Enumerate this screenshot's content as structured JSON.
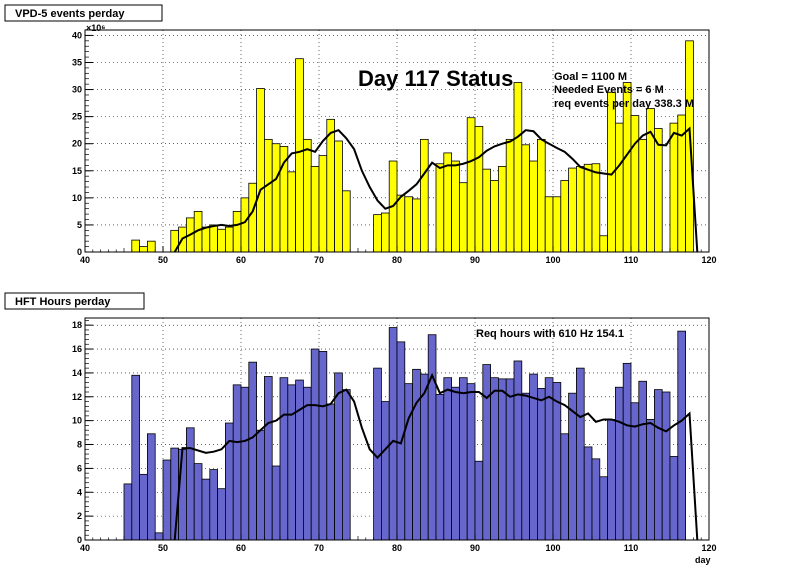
{
  "chart_data": [
    {
      "type": "bar",
      "title": "VPD-5 events perday",
      "overlay_title": "Day 117 Status",
      "annotations": [
        "Goal =  1100 M",
        "Needed Events =     6 M",
        "req events per day 338.3 M"
      ],
      "exponent_label": "×10⁶",
      "xlabel": "",
      "ylabel": "",
      "xlim": [
        40,
        120
      ],
      "ylim": [
        0,
        41
      ],
      "x_ticks": [
        40,
        50,
        60,
        70,
        80,
        90,
        100,
        110,
        120
      ],
      "y_ticks": [
        0,
        5,
        10,
        15,
        20,
        25,
        30,
        35,
        40
      ],
      "grid": true,
      "bin_width": 1,
      "bar_color": "#ffff00",
      "line_color": "#000000",
      "series": [
        {
          "style": "histogram",
          "x": [
            46,
            47,
            48,
            49,
            50,
            51,
            52,
            53,
            54,
            55,
            56,
            57,
            58,
            59,
            60,
            61,
            62,
            63,
            64,
            65,
            66,
            67,
            68,
            69,
            70,
            71,
            72,
            73,
            77,
            78,
            79,
            80,
            81,
            82,
            83,
            85,
            86,
            87,
            88,
            89,
            90,
            91,
            92,
            93,
            94,
            95,
            96,
            97,
            98,
            99,
            100,
            101,
            102,
            103,
            104,
            105,
            106,
            107,
            108,
            109,
            110,
            111,
            112,
            113,
            115,
            116,
            117
          ],
          "values": [
            2.2,
            1,
            2,
            0,
            0,
            4,
            4.6,
            6.3,
            7.5,
            4.6,
            5,
            4.2,
            4.6,
            7.5,
            10,
            12.7,
            30.2,
            20.8,
            20,
            19.5,
            14.8,
            35.7,
            20.8,
            15.8,
            17.8,
            24.5,
            20.5,
            11.3,
            6.9,
            7.2,
            16.8,
            10.5,
            10.2,
            9.8,
            20.8,
            16.3,
            18.3,
            16.8,
            12.8,
            24.8,
            23.2,
            15.3,
            13.2,
            15.8,
            20.8,
            31.3,
            19.8,
            16.8,
            20.8,
            10.2,
            10.2,
            13.2,
            15.5,
            15.8,
            16.2,
            16.3,
            3,
            29.5,
            23.8,
            31.3,
            25.2,
            20.8,
            26.5,
            22.8,
            23.8,
            25.3,
            39
          ]
        },
        {
          "style": "line",
          "x": [
            51,
            52,
            53,
            54,
            55,
            56,
            57,
            58,
            59,
            60,
            61,
            62,
            63,
            64,
            65,
            66,
            67,
            68,
            69,
            70,
            71,
            72,
            73,
            74,
            75,
            76,
            77,
            78,
            79,
            80,
            81,
            82,
            83,
            84,
            85,
            86,
            87,
            88,
            89,
            90,
            91,
            92,
            93,
            94,
            95,
            96,
            97,
            98,
            99,
            100,
            101,
            102,
            103,
            104,
            105,
            106,
            107,
            108,
            109,
            110,
            111,
            112,
            113,
            114,
            115,
            116,
            117,
            118
          ],
          "values": [
            0,
            2.5,
            3.2,
            4,
            4.5,
            4.8,
            5,
            4.8,
            5,
            5.5,
            7.5,
            11.5,
            12.5,
            13.5,
            16.5,
            18.2,
            18.5,
            19,
            18.5,
            20.5,
            22,
            22.5,
            21,
            19,
            15,
            12,
            9.5,
            8,
            8.5,
            10.2,
            11.3,
            12.5,
            14.5,
            16.5,
            15.5,
            16,
            16,
            16.3,
            16.8,
            17.5,
            18.7,
            19.5,
            20,
            20.4,
            21.3,
            22.5,
            22.3,
            20.8,
            20,
            19.2,
            18.5,
            17.2,
            15.7,
            15.2,
            14.7,
            14.5,
            14.3,
            16,
            18,
            20,
            21.5,
            22.2,
            19.8,
            19.7,
            22,
            21.5,
            22.8,
            0
          ]
        }
      ]
    },
    {
      "type": "bar",
      "title": "HFT Hours perday",
      "annotations": [
        "Req hours with  610 Hz 154.1"
      ],
      "xlabel": "day",
      "ylabel": "",
      "xlim": [
        40,
        120
      ],
      "ylim": [
        0,
        18.6
      ],
      "x_ticks": [
        40,
        50,
        60,
        70,
        80,
        90,
        100,
        110,
        120
      ],
      "y_ticks": [
        0,
        2,
        4,
        6,
        8,
        10,
        12,
        14,
        16,
        18
      ],
      "grid": true,
      "bin_width": 1,
      "bar_color": "#6666cc",
      "line_color": "#000000",
      "series": [
        {
          "style": "histogram",
          "x": [
            45,
            46,
            47,
            48,
            49,
            50,
            51,
            52,
            53,
            54,
            55,
            56,
            57,
            58,
            59,
            60,
            61,
            62,
            63,
            64,
            65,
            66,
            67,
            68,
            69,
            70,
            71,
            72,
            73,
            77,
            78,
            79,
            80,
            81,
            82,
            83,
            84,
            85,
            86,
            87,
            88,
            89,
            90,
            91,
            92,
            93,
            94,
            95,
            96,
            97,
            98,
            99,
            100,
            101,
            102,
            103,
            104,
            105,
            106,
            107,
            108,
            109,
            110,
            111,
            112,
            113,
            114,
            115,
            116,
            117
          ],
          "values": [
            4.7,
            13.8,
            5.5,
            8.9,
            0.6,
            6.7,
            7.7,
            7.6,
            9.4,
            6.4,
            5.1,
            5.9,
            4.3,
            9.8,
            13,
            12.8,
            14.9,
            9.2,
            13.7,
            6.2,
            13.6,
            13,
            13.4,
            12.8,
            16,
            15.8,
            11.4,
            14,
            12.6,
            14.4,
            11.6,
            17.8,
            16.6,
            13.1,
            14.3,
            13.9,
            17.2,
            12.2,
            13.6,
            12.8,
            13.6,
            13.1,
            6.6,
            14.7,
            13.6,
            13.5,
            13.5,
            15,
            12.3,
            13.9,
            12.7,
            13.6,
            13.2,
            8.9,
            12.3,
            14.4,
            7.8,
            6.8,
            5.3,
            10.1,
            12.8,
            14.8,
            11.5,
            13.3,
            10.1,
            12.6,
            12.4,
            7,
            17.5,
            0
          ]
        },
        {
          "style": "line",
          "x": [
            51,
            52,
            53,
            54,
            55,
            56,
            57,
            58,
            59,
            60,
            61,
            62,
            63,
            64,
            65,
            66,
            67,
            68,
            69,
            70,
            71,
            72,
            73,
            74,
            75,
            76,
            77,
            78,
            79,
            80,
            81,
            82,
            83,
            84,
            85,
            86,
            87,
            88,
            89,
            90,
            91,
            92,
            93,
            94,
            95,
            96,
            97,
            98,
            99,
            100,
            101,
            102,
            103,
            104,
            105,
            106,
            107,
            108,
            109,
            110,
            111,
            112,
            113,
            114,
            115,
            116,
            117,
            118
          ],
          "values": [
            0,
            7.7,
            7.7,
            7.5,
            7.3,
            7.4,
            7.6,
            8.3,
            8.2,
            8.3,
            8.6,
            9.2,
            9.8,
            10,
            10.5,
            10.5,
            10.9,
            11.3,
            11.3,
            11.2,
            11.4,
            12.3,
            12.6,
            11.6,
            9.4,
            7.6,
            6.9,
            7.6,
            8.3,
            8.1,
            10.2,
            11.5,
            12.3,
            13.8,
            12.3,
            12.6,
            12.4,
            12.3,
            12.4,
            12.4,
            11.9,
            12.5,
            12.5,
            12,
            12.2,
            12.1,
            11.9,
            11.7,
            12,
            11.6,
            11.3,
            10.8,
            10.3,
            10.6,
            9.9,
            10.1,
            10.1,
            9.9,
            9.6,
            9.5,
            9.7,
            9.8,
            9.4,
            9.1,
            9.6,
            10,
            10.6,
            0
          ]
        }
      ]
    }
  ],
  "footer_text": ""
}
